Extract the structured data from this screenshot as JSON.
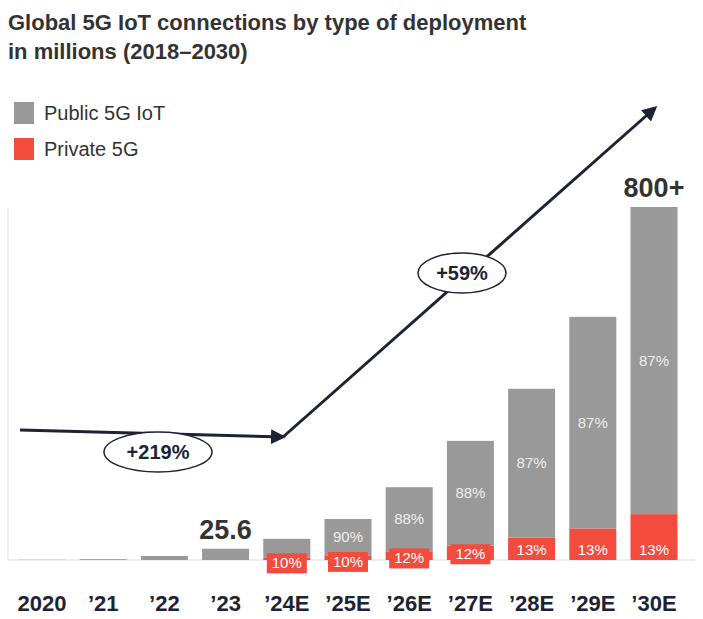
{
  "chart_data": {
    "type": "bar",
    "stacked": true,
    "title": "Global 5G IoT connections by type of deployment",
    "subtitle": "in millions (2018–2030)",
    "categories": [
      "2020",
      "’21",
      "’22",
      "’23",
      "’24E",
      "’25E",
      "’26E",
      "’27E",
      "’28E",
      "’29E",
      "’30E"
    ],
    "series": [
      {
        "name": "Public 5G IoT",
        "color": "#999999",
        "values": [
          0.5,
          2,
          9,
          25.6,
          43.2,
          83.7,
          145.2,
          237.6,
          337.6,
          479.4,
          696
        ],
        "share_labels": [
          null,
          null,
          null,
          null,
          null,
          "90%",
          "88%",
          "88%",
          "87%",
          "87%",
          "87%"
        ]
      },
      {
        "name": "Private 5G",
        "color": "#f44b3f",
        "values": [
          null,
          null,
          null,
          null,
          4.8,
          9.3,
          19.8,
          32.4,
          50.4,
          71.6,
          104
        ],
        "share_labels": [
          null,
          null,
          null,
          null,
          "10%",
          "10%",
          "12%",
          "12%",
          "13%",
          "13%",
          "13%"
        ]
      }
    ],
    "total_labels": [
      null,
      null,
      null,
      "25.6",
      null,
      null,
      null,
      null,
      null,
      null,
      "800+"
    ],
    "annotations": [
      {
        "text": "+219%"
      },
      {
        "text": "+59%"
      }
    ],
    "ylim": [
      0,
      800
    ],
    "tick_labels": "x",
    "legend": "top-left"
  }
}
